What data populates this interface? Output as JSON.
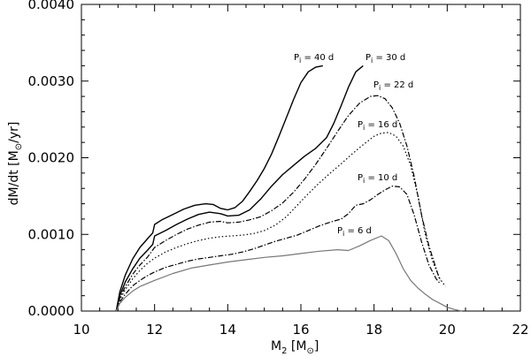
{
  "chart_data": {
    "type": "line",
    "xlabel": "M_2 [M_⊙]",
    "ylabel": "dM/dt [M_⊙/yr]",
    "xlim": [
      10,
      22
    ],
    "ylim": [
      0,
      0.004
    ],
    "xticks": [
      10,
      12,
      14,
      16,
      18,
      20,
      22
    ],
    "xtick_labels": [
      "10",
      "12",
      "14",
      "16",
      "18",
      "20",
      "22"
    ],
    "yticks": [
      0,
      0.001,
      0.002,
      0.003,
      0.004
    ],
    "ytick_labels": [
      "0.0000",
      "0.0010",
      "0.0020",
      "0.0030",
      "0.0040"
    ],
    "grid": false,
    "series": [
      {
        "name": "P_i = 40 d",
        "style": "solid",
        "color": "#000000",
        "x": [
          10.95,
          11.05,
          11.2,
          11.4,
          11.6,
          11.8,
          11.95,
          12.0,
          12.2,
          12.5,
          12.8,
          13.1,
          13.4,
          13.6,
          13.8,
          14.0,
          14.2,
          14.4,
          14.6,
          14.8,
          15.0,
          15.2,
          15.4,
          15.6,
          15.8,
          16.0,
          16.2,
          16.4,
          16.6
        ],
        "y": [
          0.0,
          0.00025,
          0.00047,
          0.00068,
          0.00083,
          0.00094,
          0.00102,
          0.00113,
          0.00119,
          0.00126,
          0.00133,
          0.00138,
          0.0014,
          0.00139,
          0.00134,
          0.00132,
          0.00135,
          0.00143,
          0.00156,
          0.0017,
          0.00186,
          0.00205,
          0.00228,
          0.00252,
          0.00276,
          0.00298,
          0.00312,
          0.00318,
          0.0032
        ]
      },
      {
        "name": "P_i = 30 d",
        "style": "solid",
        "color": "#000000",
        "x": [
          10.95,
          11.05,
          11.2,
          11.4,
          11.6,
          11.8,
          11.95,
          12.0,
          12.3,
          12.6,
          12.9,
          13.2,
          13.5,
          13.8,
          14.0,
          14.3,
          14.6,
          14.9,
          15.2,
          15.5,
          15.8,
          16.1,
          16.4,
          16.7,
          16.9,
          17.1,
          17.3,
          17.5,
          17.7
        ],
        "y": [
          0.0,
          0.0002,
          0.00038,
          0.00055,
          0.00069,
          0.00079,
          0.00087,
          0.00098,
          0.00105,
          0.00113,
          0.0012,
          0.00126,
          0.00129,
          0.00127,
          0.00124,
          0.00125,
          0.00132,
          0.00146,
          0.00163,
          0.00178,
          0.0019,
          0.00202,
          0.00212,
          0.00226,
          0.00245,
          0.00268,
          0.00292,
          0.00312,
          0.0032
        ]
      },
      {
        "name": "P_i = 22 d",
        "style": "dashdot",
        "color": "#000000",
        "x": [
          10.95,
          11.05,
          11.2,
          11.4,
          11.6,
          11.8,
          12.0,
          12.3,
          12.6,
          12.9,
          13.2,
          13.5,
          13.8,
          14.0,
          14.3,
          14.6,
          14.9,
          15.2,
          15.5,
          15.8,
          16.1,
          16.4,
          16.7,
          17.0,
          17.3,
          17.6,
          17.9,
          18.1,
          18.3,
          18.5,
          18.7,
          18.9,
          19.1,
          19.3,
          19.5,
          19.7,
          19.8
        ],
        "y": [
          0.0,
          0.00017,
          0.00032,
          0.00048,
          0.0006,
          0.0007,
          0.00083,
          0.00092,
          0.001,
          0.00107,
          0.00112,
          0.00116,
          0.00117,
          0.00115,
          0.00116,
          0.00119,
          0.00123,
          0.00131,
          0.00141,
          0.00155,
          0.00172,
          0.00191,
          0.00212,
          0.00234,
          0.00255,
          0.00271,
          0.0028,
          0.00281,
          0.00277,
          0.00265,
          0.00245,
          0.00215,
          0.00175,
          0.00125,
          0.00085,
          0.00055,
          0.0004
        ]
      },
      {
        "name": "P_i = 16 d",
        "style": "dotted",
        "color": "#000000",
        "x": [
          10.95,
          11.05,
          11.2,
          11.4,
          11.6,
          11.8,
          12.0,
          12.3,
          12.6,
          12.9,
          13.2,
          13.5,
          13.8,
          14.1,
          14.4,
          14.7,
          15.0,
          15.3,
          15.6,
          15.9,
          16.2,
          16.5,
          16.8,
          17.1,
          17.4,
          17.7,
          18.0,
          18.2,
          18.4,
          18.6,
          18.8,
          19.0,
          19.2,
          19.4,
          19.6,
          19.8,
          19.95
        ],
        "y": [
          0.0,
          0.00015,
          0.00028,
          0.00042,
          0.00053,
          0.00062,
          0.00069,
          0.00077,
          0.00083,
          0.00088,
          0.00092,
          0.00095,
          0.00097,
          0.00098,
          0.00099,
          0.00101,
          0.00105,
          0.00112,
          0.00123,
          0.00138,
          0.00153,
          0.00167,
          0.0018,
          0.00192,
          0.00205,
          0.00217,
          0.00228,
          0.00232,
          0.00233,
          0.00228,
          0.00215,
          0.0019,
          0.0015,
          0.001,
          0.00065,
          0.00042,
          0.00032
        ]
      },
      {
        "name": "P_i = 10 d",
        "style": "dashdot",
        "color": "#000000",
        "x": [
          10.95,
          11.05,
          11.2,
          11.4,
          11.6,
          11.8,
          12.0,
          12.3,
          12.6,
          12.9,
          13.2,
          13.5,
          13.8,
          14.1,
          14.4,
          14.7,
          15.0,
          15.3,
          15.6,
          15.9,
          16.2,
          16.5,
          16.8,
          17.1,
          17.3,
          17.5,
          17.7,
          17.9,
          18.1,
          18.3,
          18.5,
          18.7,
          18.9,
          19.1,
          19.3,
          19.5,
          19.7,
          19.8
        ],
        "y": [
          0.0,
          0.00012,
          0.00022,
          0.00033,
          0.0004,
          0.00046,
          0.00051,
          0.00057,
          0.00061,
          0.00065,
          0.00068,
          0.0007,
          0.00072,
          0.00074,
          0.00077,
          0.00081,
          0.00086,
          0.00091,
          0.00095,
          0.00099,
          0.00105,
          0.00111,
          0.00116,
          0.0012,
          0.00127,
          0.00138,
          0.0014,
          0.00145,
          0.00152,
          0.00158,
          0.00163,
          0.00162,
          0.00152,
          0.00125,
          0.0009,
          0.0006,
          0.00042,
          0.00036
        ]
      },
      {
        "name": "P_i = 6 d",
        "style": "solid",
        "color": "#777777",
        "x": [
          10.95,
          11.05,
          11.2,
          11.4,
          11.6,
          11.8,
          12.0,
          12.5,
          13.0,
          13.5,
          14.0,
          14.5,
          15.0,
          15.5,
          16.0,
          16.5,
          17.0,
          17.3,
          17.6,
          17.9,
          18.2,
          18.4,
          18.6,
          18.8,
          19.0,
          19.2,
          19.4,
          19.6,
          19.8,
          20.0,
          20.2,
          20.4
        ],
        "y": [
          0.0,
          0.0001,
          0.00018,
          0.00026,
          0.00032,
          0.00036,
          0.0004,
          0.00049,
          0.00056,
          0.0006,
          0.00064,
          0.00067,
          0.0007,
          0.00072,
          0.00075,
          0.00078,
          0.0008,
          0.00079,
          0.00085,
          0.00092,
          0.00098,
          0.00092,
          0.00075,
          0.00055,
          0.0004,
          0.0003,
          0.00022,
          0.00015,
          0.0001,
          5e-05,
          2e-05,
          0.0
        ]
      }
    ]
  },
  "series_labels": {
    "p40": {
      "base": "P",
      "sub": "i",
      "rest": " = 40 d"
    },
    "p30": {
      "base": "P",
      "sub": "i",
      "rest": " = 30 d"
    },
    "p22": {
      "base": "P",
      "sub": "i",
      "rest": " = 22 d"
    },
    "p16": {
      "base": "P",
      "sub": "i",
      "rest": " = 16 d"
    },
    "p10": {
      "base": "P",
      "sub": "i",
      "rest": " = 10 d"
    },
    "p6": {
      "base": "P",
      "sub": "i",
      "rest": " = 6 d"
    }
  },
  "axis_titles": {
    "x": {
      "base": "M",
      "sub": "2",
      "open": " [M",
      "sun": "⊙",
      "close": "]"
    },
    "y": {
      "base": "dM/dt",
      "open": " [M",
      "sun": "⊙",
      "close": "/yr]"
    }
  }
}
